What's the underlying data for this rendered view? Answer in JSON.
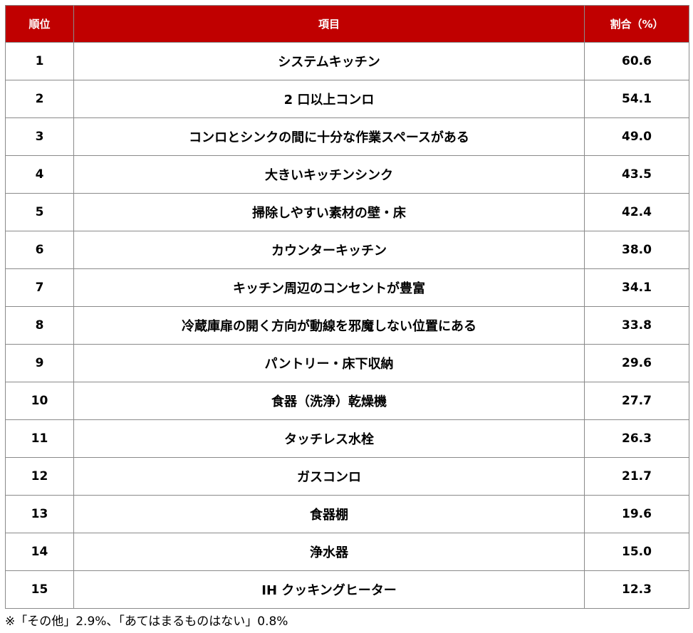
{
  "header": {
    "rank": "順位",
    "item": "項目",
    "ratio": "割合（%）"
  },
  "chart_data": {
    "type": "table",
    "columns": [
      "順位",
      "項目",
      "割合（%）"
    ],
    "rows": [
      {
        "rank": "1",
        "item": "システムキッチン",
        "value": "60.6"
      },
      {
        "rank": "2",
        "item": "2 口以上コンロ",
        "value": "54.1"
      },
      {
        "rank": "3",
        "item": "コンロとシンクの間に十分な作業スペースがある",
        "value": "49.0"
      },
      {
        "rank": "4",
        "item": "大きいキッチンシンク",
        "value": "43.5"
      },
      {
        "rank": "5",
        "item": "掃除しやすい素材の壁・床",
        "value": "42.4"
      },
      {
        "rank": "6",
        "item": "カウンターキッチン",
        "value": "38.0"
      },
      {
        "rank": "7",
        "item": "キッチン周辺のコンセントが豊富",
        "value": "34.1"
      },
      {
        "rank": "8",
        "item": "冷蔵庫扉の開く方向が動線を邪魔しない位置にある",
        "value": "33.8"
      },
      {
        "rank": "9",
        "item": "パントリー・床下収納",
        "value": "29.6"
      },
      {
        "rank": "10",
        "item": "食器（洗浄）乾燥機",
        "value": "27.7"
      },
      {
        "rank": "11",
        "item": "タッチレス水栓",
        "value": "26.3"
      },
      {
        "rank": "12",
        "item": "ガスコンロ",
        "value": "21.7"
      },
      {
        "rank": "13",
        "item": "食器棚",
        "value": "19.6"
      },
      {
        "rank": "14",
        "item": "浄水器",
        "value": "15.0"
      },
      {
        "rank": "15",
        "item": "IH クッキングヒーター",
        "value": "12.3"
      }
    ]
  },
  "note": "※「その他」2.9%、「あてはまるものはない」0.8%",
  "colors": {
    "header_bg": "#c00000",
    "header_text": "#ffffff",
    "border": "#8a8a8a"
  }
}
